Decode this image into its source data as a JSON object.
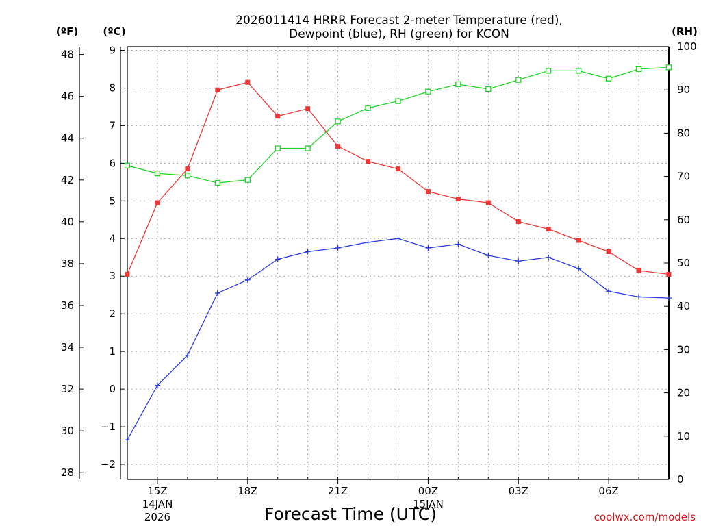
{
  "chart_data": {
    "type": "line",
    "title": [
      "2026011414 HRRR Forecast 2-meter Temperature (red),",
      "Dewpoint (blue), RH (green) for KCON"
    ],
    "xlabel": "Forecast Time (UTC)",
    "credit": "coolwx.com/models",
    "units": {
      "fahrenheit": "(ºF)",
      "celsius": "(ºC)",
      "rh": "(RH)"
    },
    "x_hours": [
      14,
      15,
      16,
      17,
      18,
      19,
      20,
      21,
      22,
      23,
      24,
      25,
      26,
      27,
      28,
      29,
      30,
      31,
      32
    ],
    "xlim": [
      14,
      32
    ],
    "x_ticks": [
      {
        "hour": 15,
        "label": "15Z",
        "sub": [
          "14JAN",
          "2026"
        ]
      },
      {
        "hour": 18,
        "label": "18Z",
        "sub": []
      },
      {
        "hour": 21,
        "label": "21Z",
        "sub": []
      },
      {
        "hour": 24,
        "label": "00Z",
        "sub": [
          "15JAN"
        ]
      },
      {
        "hour": 27,
        "label": "03Z",
        "sub": []
      },
      {
        "hour": 30,
        "label": "06Z",
        "sub": []
      }
    ],
    "axes": {
      "celsius": {
        "range": [
          -2.4,
          9.1
        ],
        "ticks": [
          -2,
          -1,
          0,
          1,
          2,
          3,
          4,
          5,
          6,
          7,
          8,
          9
        ]
      },
      "fahrenheit": {
        "range": [
          27.68,
          48.38
        ],
        "ticks": [
          28,
          30,
          32,
          34,
          36,
          38,
          40,
          42,
          44,
          46,
          48
        ]
      },
      "rh": {
        "range": [
          0,
          100
        ],
        "ticks": [
          0,
          10,
          20,
          30,
          40,
          50,
          60,
          70,
          80,
          90,
          100
        ]
      }
    },
    "series": [
      {
        "name": "Temperature",
        "color": "#ee3636",
        "marker": "filled-square",
        "axis": "celsius",
        "values": [
          3.05,
          4.95,
          5.85,
          7.95,
          8.15,
          7.25,
          7.45,
          6.45,
          6.05,
          5.85,
          5.25,
          5.05,
          4.95,
          4.45,
          4.25,
          3.95,
          3.65,
          3.15,
          3.05
        ]
      },
      {
        "name": "Dewpoint",
        "color": "#2a3be0",
        "marker": "plus",
        "axis": "celsius",
        "values": [
          -1.35,
          0.1,
          0.9,
          2.55,
          2.9,
          3.45,
          3.65,
          3.75,
          3.9,
          4.0,
          3.75,
          3.85,
          3.55,
          3.4,
          3.5,
          3.2,
          2.6,
          2.45,
          2.42
        ]
      },
      {
        "name": "RH",
        "color": "#22d42a",
        "marker": "open-square",
        "axis": "rh",
        "values": [
          72.5,
          70.7,
          70.2,
          68.5,
          69.2,
          76.5,
          76.5,
          82.7,
          85.8,
          87.4,
          89.6,
          91.3,
          90.2,
          92.3,
          94.4,
          94.4,
          92.6,
          94.8,
          95.2
        ]
      }
    ]
  }
}
